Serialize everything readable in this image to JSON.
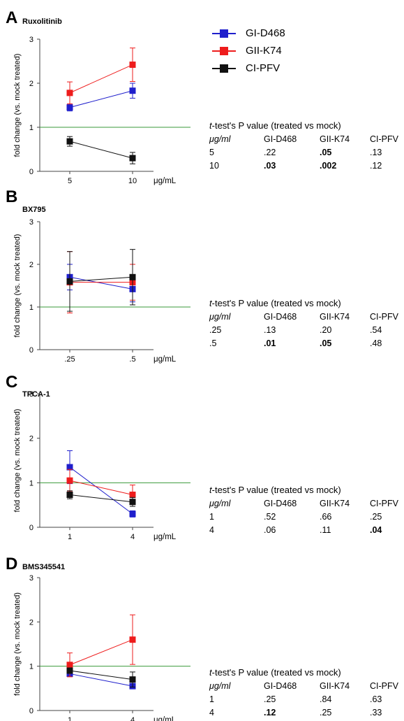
{
  "legend": [
    {
      "name": "GI-D468",
      "color": "#1f1fcc"
    },
    {
      "name": "GII-K74",
      "color": "#ee1c1c"
    },
    {
      "name": "CI-PFV",
      "color": "#111111"
    }
  ],
  "reference_line_color": "#3a9a3a",
  "ylabel": "fold change (vs. mock treated)",
  "unit": "μg/mL",
  "chart_data": [
    {
      "type": "line",
      "panel": "A",
      "title": "Ruxolitinib",
      "categories": [
        "5",
        "10"
      ],
      "ylim": [
        0,
        3
      ],
      "yticks": [
        "0",
        "1",
        "2",
        "3"
      ],
      "xlabel": "μg/mL",
      "ylabel": "fold change (vs. mock treated)",
      "reference_line": 1,
      "series": [
        {
          "name": "GI-D468",
          "values": [
            1.45,
            1.83
          ],
          "errors": [
            0.08,
            0.17
          ]
        },
        {
          "name": "GII-K74",
          "values": [
            1.78,
            2.42
          ],
          "errors": [
            0.25,
            0.38
          ]
        },
        {
          "name": "CI-PFV",
          "values": [
            0.68,
            0.3
          ],
          "errors": [
            0.11,
            0.13
          ]
        }
      ],
      "pvalue_table": {
        "title_prefix": "t",
        "title_rest": "-test's P value (treated  vs mock)",
        "columns": [
          "μg/ml",
          "GI-D468",
          "GII-K74",
          "CI-PFV"
        ],
        "rows": [
          {
            "dose": "5",
            "values": [
              ".22",
              ".05",
              ".13"
            ],
            "bold": [
              false,
              true,
              false
            ]
          },
          {
            "dose": "10",
            "values": [
              ".03",
              ".002",
              ".12"
            ],
            "bold": [
              true,
              true,
              false
            ]
          }
        ]
      }
    },
    {
      "type": "line",
      "panel": "B",
      "title": "BX795",
      "categories": [
        ".25",
        ".5"
      ],
      "ylim": [
        0,
        3
      ],
      "yticks": [
        "0",
        "1",
        "2",
        "3"
      ],
      "xlabel": "μg/mL",
      "ylabel": "fold change (vs. mock treated)",
      "reference_line": 1,
      "series": [
        {
          "name": "GI-D468",
          "values": [
            1.7,
            1.42
          ],
          "errors": [
            0.3,
            0.3
          ]
        },
        {
          "name": "GII-K74",
          "values": [
            1.58,
            1.58
          ],
          "errors": [
            0.72,
            0.42
          ]
        },
        {
          "name": "CI-PFV",
          "values": [
            1.6,
            1.7
          ],
          "errors": [
            0.7,
            0.65
          ]
        }
      ],
      "pvalue_table": {
        "title_prefix": "t",
        "title_rest": "-test's P value (treated  vs mock)",
        "columns": [
          "μg/ml",
          "GI-D468",
          "GII-K74",
          "CI-PFV"
        ],
        "rows": [
          {
            "dose": ".25",
            "values": [
              ".13",
              ".20",
              ".54"
            ],
            "bold": [
              false,
              false,
              false
            ]
          },
          {
            "dose": ".5",
            "values": [
              ".01",
              ".05",
              ".48"
            ],
            "bold": [
              true,
              true,
              false
            ]
          }
        ]
      }
    },
    {
      "type": "line",
      "panel": "C",
      "title": "TPCA-1",
      "categories": [
        "1",
        "4"
      ],
      "ylim": [
        0,
        3
      ],
      "yticks": [
        "0",
        "1",
        "2",
        "3"
      ],
      "xlabel": "μg/mL",
      "ylabel": "fold change (vs. mock treated)",
      "reference_line": 1,
      "series": [
        {
          "name": "GI-D468",
          "values": [
            1.35,
            0.3
          ],
          "errors": [
            0.37,
            0.07
          ]
        },
        {
          "name": "GII-K74",
          "values": [
            1.05,
            0.73
          ],
          "errors": [
            0.25,
            0.22
          ]
        },
        {
          "name": "CI-PFV",
          "values": [
            0.73,
            0.57
          ],
          "errors": [
            0.09,
            0.1
          ]
        }
      ],
      "pvalue_table": {
        "title_prefix": "t",
        "title_rest": "-test's P value (treated  vs mock)",
        "columns": [
          "μg/ml",
          "GI-D468",
          "GII-K74",
          "CI-PFV"
        ],
        "rows": [
          {
            "dose": "1",
            "values": [
              ".52",
              ".66",
              ".25"
            ],
            "bold": [
              false,
              false,
              false
            ]
          },
          {
            "dose": "4",
            "values": [
              ".06",
              ".11",
              ".04"
            ],
            "bold": [
              false,
              false,
              true
            ]
          }
        ]
      }
    },
    {
      "type": "line",
      "panel": "D",
      "title": "BMS345541",
      "categories": [
        "1",
        "4"
      ],
      "ylim": [
        0,
        3
      ],
      "yticks": [
        "0",
        "1",
        "2",
        "3"
      ],
      "xlabel": "μg/mL",
      "ylabel": "fold change (vs. mock treated)",
      "reference_line": 1,
      "series": [
        {
          "name": "GI-D468",
          "values": [
            0.83,
            0.55
          ],
          "errors": [
            0.05,
            0.05
          ]
        },
        {
          "name": "GII-K74",
          "values": [
            1.03,
            1.6
          ],
          "errors": [
            0.27,
            0.56
          ]
        },
        {
          "name": "CI-PFV",
          "values": [
            0.9,
            0.7
          ],
          "errors": [
            0.05,
            0.17
          ]
        }
      ],
      "pvalue_table": {
        "title_prefix": "t",
        "title_rest": "-test's P value (treated  vs mock)",
        "columns": [
          "μg/ml",
          "GI-D468",
          "GII-K74",
          "CI-PFV"
        ],
        "rows": [
          {
            "dose": "1",
            "values": [
              ".25",
              ".84",
              ".63"
            ],
            "bold": [
              false,
              false,
              false
            ]
          },
          {
            "dose": "4",
            "values": [
              ".12",
              ".25",
              ".33"
            ],
            "bold": [
              true,
              false,
              false
            ]
          }
        ]
      }
    }
  ]
}
